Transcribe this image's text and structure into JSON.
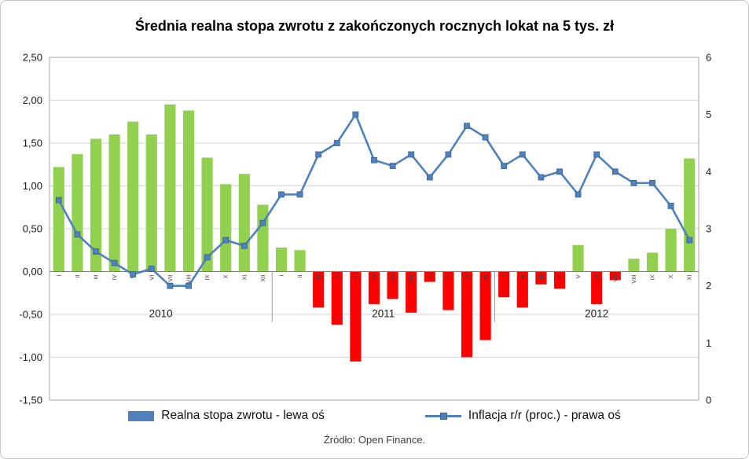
{
  "source": "Źródło: Open Finance.",
  "chart_data": {
    "type": "bar+line combo (monthly)",
    "title": "Średnia realna stopa zwrotu z zakończonych rocznych lokat na 5 tys. zł",
    "xlabel": "",
    "ylabel_left": "",
    "ylabel_right": "",
    "grid": "horizontal gridlines on, from left axis",
    "legend_position": "bottom",
    "legend_bar_swatch_color": "#4F81BD",
    "years": [
      {
        "label": "2010",
        "months": [
          "I",
          "II",
          "III",
          "IV",
          "V",
          "VI",
          "VII",
          "VIII",
          "IX",
          "X",
          "XI",
          "XII"
        ]
      },
      {
        "label": "2011",
        "months": [
          "I",
          "II",
          "III",
          "IV",
          "V",
          "VI",
          "VII",
          "VIII",
          "IX",
          "X",
          "XI",
          "XII"
        ]
      },
      {
        "label": "2012",
        "months": [
          "I",
          "II",
          "III",
          "IV",
          "V",
          "VI",
          "VII",
          "VIII",
          "IX",
          "X",
          "XI"
        ]
      }
    ],
    "left_axis": {
      "min": -1.5,
      "max": 2.5,
      "step": 0.5,
      "labels": [
        "2,50",
        "2,00",
        "1,50",
        "1,00",
        "0,50",
        "0,00",
        "-0,50",
        "-1,00",
        "-1,50"
      ]
    },
    "right_axis": {
      "min": 0,
      "max": 6,
      "step": 1,
      "labels": [
        "6",
        "5",
        "4",
        "3",
        "2",
        "1",
        "0"
      ]
    },
    "series": [
      {
        "name": "Realna stopa zwrotu - lewa oś",
        "type": "bar",
        "axis": "left",
        "positive_color": "#92D050",
        "negative_color": "#FF0000",
        "values": [
          1.22,
          1.37,
          1.55,
          1.6,
          1.75,
          1.6,
          1.95,
          1.88,
          1.33,
          1.02,
          1.14,
          0.78,
          0.28,
          0.25,
          -0.42,
          -0.62,
          -1.05,
          -0.38,
          -0.32,
          -0.48,
          -0.12,
          -0.45,
          -1.0,
          -0.8,
          -0.3,
          -0.42,
          -0.15,
          -0.2,
          0.31,
          -0.38,
          -0.1,
          0.15,
          0.22,
          0.5,
          1.32
        ]
      },
      {
        "name": "Inflacja r/r (proc.) - prawa oś",
        "type": "line",
        "axis": "right",
        "color": "#4F81BD",
        "marker": "square",
        "values": [
          3.5,
          2.9,
          2.6,
          2.4,
          2.2,
          2.3,
          2.0,
          2.0,
          2.5,
          2.8,
          2.7,
          3.1,
          3.6,
          3.6,
          4.3,
          4.5,
          5.0,
          4.2,
          4.1,
          4.3,
          3.9,
          4.3,
          4.8,
          4.6,
          4.1,
          4.3,
          3.9,
          4.0,
          3.6,
          4.3,
          4.0,
          3.8,
          3.8,
          3.4,
          2.8
        ]
      }
    ]
  }
}
